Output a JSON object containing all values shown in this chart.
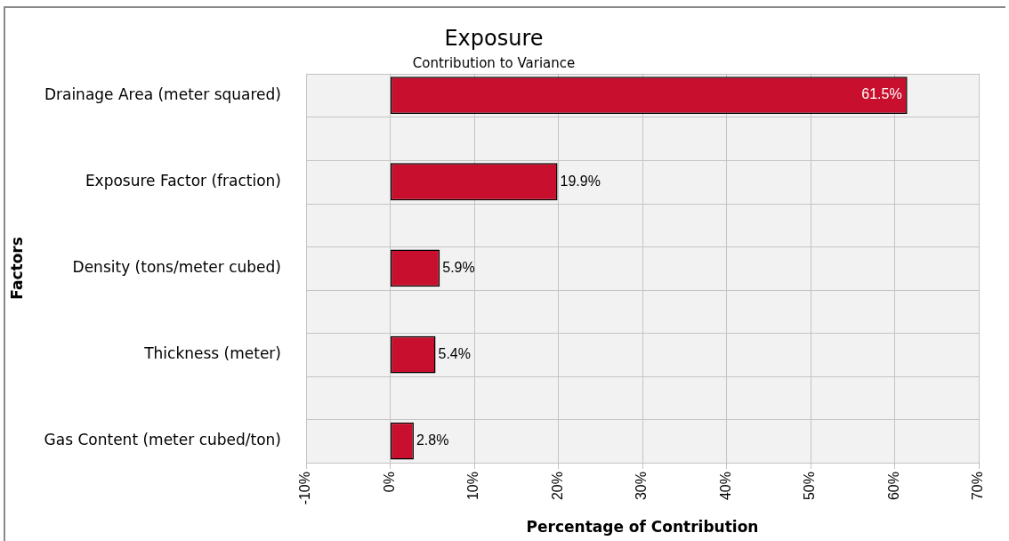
{
  "chart_data": {
    "type": "bar",
    "orientation": "horizontal",
    "title": "Exposure",
    "subtitle": "Contribution to Variance",
    "xlabel": "Percentage of Contribution",
    "ylabel": "Factors",
    "categories": [
      "Drainage Area (meter squared)",
      "Exposure Factor (fraction)",
      "Density (tons/meter cubed)",
      "Thickness (meter)",
      "Gas Content (meter cubed/ton)"
    ],
    "values": [
      61.5,
      19.9,
      5.9,
      5.4,
      2.8
    ],
    "value_labels": [
      "61.5%",
      "19.9%",
      "5.9%",
      "5.4%",
      "2.8%"
    ],
    "color": "#c8102e",
    "xlim": [
      -10,
      70
    ],
    "xticks": [
      {
        "value": -10,
        "label": "-10%"
      },
      {
        "value": 0,
        "label": "0%"
      },
      {
        "value": 10,
        "label": "10%"
      },
      {
        "value": 20,
        "label": "20%"
      },
      {
        "value": 30,
        "label": "30%"
      },
      {
        "value": 40,
        "label": "40%"
      },
      {
        "value": 50,
        "label": "50%"
      },
      {
        "value": 60,
        "label": "60%"
      },
      {
        "value": 70,
        "label": "70%"
      }
    ],
    "grid": true
  }
}
